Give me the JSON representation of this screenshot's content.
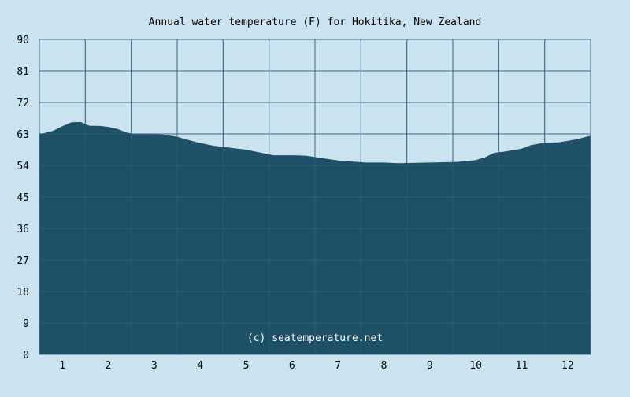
{
  "chart_data": {
    "type": "area",
    "title": "Annual water temperature (F) for Hokitika, New Zealand",
    "watermark": "(c) seatemperature.net",
    "xlabel": "",
    "ylabel": "",
    "ylim": [
      0,
      90
    ],
    "yticks": [
      0,
      9,
      18,
      27,
      36,
      45,
      54,
      63,
      72,
      81,
      90
    ],
    "months": [
      "1",
      "2",
      "3",
      "4",
      "5",
      "6",
      "7",
      "8",
      "9",
      "10",
      "11",
      "12"
    ],
    "grid": true,
    "colors": {
      "background": "#cbe3ef",
      "fill": "#1e5068",
      "grid": "#3f6f88",
      "frame": "#3f6f88",
      "text": "#000000"
    },
    "x_month_position": [
      0.5,
      0.6,
      0.8,
      1.0,
      1.2,
      1.4,
      1.5,
      1.6,
      1.8,
      2.0,
      2.2,
      2.4,
      2.6,
      2.8,
      3.0,
      3.2,
      3.5,
      3.7,
      4.0,
      4.3,
      4.6,
      5.0,
      5.3,
      5.6,
      6.0,
      6.3,
      6.6,
      7.0,
      7.3,
      7.6,
      8.0,
      8.3,
      8.6,
      9.0,
      9.3,
      9.6,
      10.0,
      10.2,
      10.4,
      10.6,
      11.0,
      11.2,
      11.5,
      11.8,
      12.0,
      12.2,
      12.5
    ],
    "temperature_f": [
      63.1,
      63.2,
      63.9,
      65.2,
      66.3,
      66.4,
      65.8,
      65.3,
      65.3,
      65.0,
      64.4,
      63.4,
      62.9,
      62.9,
      62.9,
      62.8,
      62.2,
      61.4,
      60.4,
      59.6,
      59.1,
      58.5,
      57.7,
      56.9,
      56.9,
      56.8,
      56.2,
      55.4,
      55.1,
      54.8,
      54.8,
      54.6,
      54.7,
      54.8,
      54.9,
      55.0,
      55.5,
      56.3,
      57.6,
      57.9,
      58.8,
      59.8,
      60.5,
      60.6,
      61.0,
      61.5,
      62.5
    ]
  }
}
